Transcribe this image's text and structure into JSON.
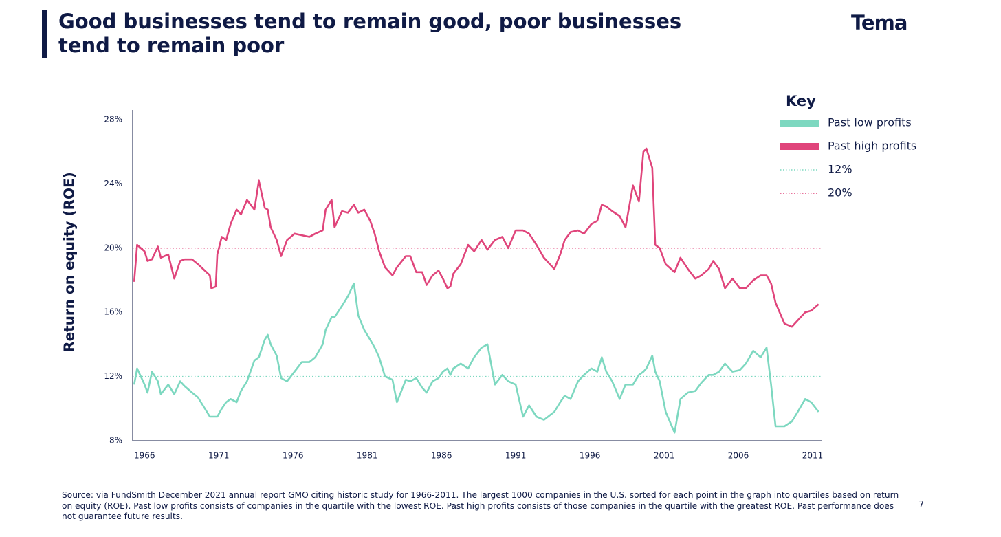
{
  "header": {
    "title": "Good businesses tend to remain good, poor businesses tend to remain poor",
    "logo": "Tema"
  },
  "chart_data": {
    "type": "line",
    "y_label": "Return on equity (ROE)",
    "legend_title": "Key",
    "x": [
      1965.3,
      1965.5,
      1966.0,
      1966.2,
      1966.5,
      1966.9,
      1967.1,
      1967.6,
      1968.0,
      1968.4,
      1968.7,
      1969.2,
      1969.6,
      1970.4,
      1970.5,
      1970.8,
      1970.9,
      1971.2,
      1971.5,
      1971.8,
      1972.2,
      1972.5,
      1972.9,
      1973.4,
      1973.7,
      1974.1,
      1974.3,
      1974.5,
      1974.9,
      1975.2,
      1975.6,
      1976.1,
      1976.6,
      1977.1,
      1977.5,
      1978.0,
      1978.2,
      1978.6,
      1978.8,
      1979.3,
      1979.7,
      1980.1,
      1980.4,
      1980.8,
      1981.2,
      1981.5,
      1981.8,
      1982.2,
      1982.7,
      1983.0,
      1983.6,
      1983.9,
      1984.3,
      1984.7,
      1985.0,
      1985.4,
      1985.8,
      1986.1,
      1986.4,
      1986.6,
      1986.8,
      1987.3,
      1987.8,
      1988.2,
      1988.7,
      1989.1,
      1989.6,
      1990.1,
      1990.5,
      1991.0,
      1991.5,
      1991.9,
      1992.4,
      1992.9,
      1993.6,
      1994.0,
      1994.3,
      1994.7,
      1995.2,
      1995.6,
      1996.1,
      1996.5,
      1996.8,
      1997.1,
      1997.5,
      1998.0,
      1998.4,
      1998.9,
      1999.3,
      1999.6,
      1999.8,
      2000.2,
      2000.4,
      2000.7,
      2001.1,
      2001.7,
      2002.1,
      2002.6,
      2003.1,
      2003.5,
      2004.0,
      2004.3,
      2004.7,
      2005.1,
      2005.6,
      2006.1,
      2006.5,
      2007.0,
      2007.5,
      2007.9,
      2008.2,
      2008.5,
      2009.1,
      2009.6,
      2010.0,
      2010.5,
      2010.9,
      2011.4
    ],
    "series": [
      {
        "name": "Past low profits",
        "color": "#7dd8c0",
        "values": [
          11.5,
          12.5,
          11.5,
          11.0,
          12.3,
          11.7,
          10.9,
          11.5,
          10.9,
          11.7,
          11.4,
          11.0,
          10.7,
          9.5,
          9.5,
          9.5,
          9.5,
          10.0,
          10.4,
          10.6,
          10.4,
          11.1,
          11.7,
          13.0,
          13.2,
          14.3,
          14.6,
          14.0,
          13.3,
          11.9,
          11.7,
          12.3,
          12.9,
          12.9,
          13.2,
          14.0,
          14.9,
          15.7,
          15.7,
          16.4,
          17.0,
          17.8,
          15.8,
          14.9,
          14.3,
          13.8,
          13.2,
          12.0,
          11.8,
          10.4,
          11.8,
          11.7,
          11.9,
          11.3,
          11.0,
          11.7,
          11.9,
          12.3,
          12.5,
          12.1,
          12.5,
          12.8,
          12.5,
          13.2,
          13.8,
          14.0,
          11.5,
          12.1,
          11.7,
          11.5,
          9.5,
          10.2,
          9.5,
          9.3,
          9.8,
          10.4,
          10.8,
          10.6,
          11.7,
          12.1,
          12.5,
          12.3,
          13.2,
          12.3,
          11.7,
          10.6,
          11.5,
          11.5,
          12.1,
          12.3,
          12.5,
          13.3,
          12.3,
          11.7,
          9.8,
          8.5,
          10.6,
          11.0,
          11.1,
          11.6,
          12.1,
          12.1,
          12.3,
          12.8,
          12.3,
          12.4,
          12.8,
          13.6,
          13.2,
          13.8,
          11.5,
          8.9,
          8.9,
          9.2,
          9.8,
          10.6,
          10.4,
          9.8
        ]
      },
      {
        "name": "Past high profits",
        "color": "#e0457b",
        "values": [
          17.9,
          20.2,
          19.8,
          19.2,
          19.3,
          20.1,
          19.4,
          19.6,
          18.1,
          19.2,
          19.3,
          19.3,
          19.0,
          18.3,
          17.5,
          17.6,
          19.6,
          20.7,
          20.5,
          21.5,
          22.4,
          22.1,
          23.0,
          22.4,
          24.2,
          22.5,
          22.4,
          21.3,
          20.5,
          19.5,
          20.5,
          20.9,
          20.8,
          20.7,
          20.9,
          21.1,
          22.4,
          23.0,
          21.3,
          22.3,
          22.2,
          22.7,
          22.2,
          22.4,
          21.7,
          20.9,
          19.8,
          18.8,
          18.3,
          18.8,
          19.5,
          19.5,
          18.5,
          18.5,
          17.7,
          18.3,
          18.6,
          18.1,
          17.5,
          17.6,
          18.4,
          19.0,
          20.2,
          19.8,
          20.5,
          19.9,
          20.5,
          20.7,
          20.0,
          21.1,
          21.1,
          20.9,
          20.2,
          19.4,
          18.7,
          19.6,
          20.5,
          21.0,
          21.1,
          20.9,
          21.5,
          21.7,
          22.7,
          22.6,
          22.3,
          22.0,
          21.3,
          23.9,
          22.9,
          26.0,
          26.2,
          25.0,
          20.2,
          20.0,
          19.0,
          18.5,
          19.4,
          18.7,
          18.1,
          18.3,
          18.7,
          19.2,
          18.7,
          17.5,
          18.1,
          17.5,
          17.5,
          18.0,
          18.3,
          18.3,
          17.8,
          16.6,
          15.3,
          15.1,
          15.5,
          16.0,
          16.1,
          16.5
        ]
      }
    ],
    "reference_lines": [
      {
        "value": 12,
        "label": "12%",
        "color": "#7dd8c0"
      },
      {
        "value": 20,
        "label": "20%",
        "color": "#e0457b"
      }
    ],
    "xlim": [
      1965.2,
      2011.6
    ],
    "xticks": [
      1966,
      1971,
      1976,
      1981,
      1986,
      1991,
      1996,
      2001,
      2006,
      2011
    ],
    "ylim": [
      8,
      28.6
    ],
    "yticks": [
      {
        "value": 8,
        "label": "8%"
      },
      {
        "value": 12,
        "label": "12%"
      },
      {
        "value": 16,
        "label": "16%"
      },
      {
        "value": 20,
        "label": "20%"
      },
      {
        "value": 24,
        "label": "24%"
      },
      {
        "value": 28,
        "label": "28%"
      }
    ],
    "grid": false
  },
  "footer": {
    "source": "Source: via FundSmith December 2021 annual report GMO citing historic study for 1966-2011. The largest 1000 companies in the U.S. sorted for each point in the graph into quartiles based on return on equity (ROE). Past low profits consists of companies in the quartile with the lowest ROE. Past high profits consists of those companies in the quartile with the greatest ROE. Past performance does not guarantee future results.",
    "page": "7"
  }
}
